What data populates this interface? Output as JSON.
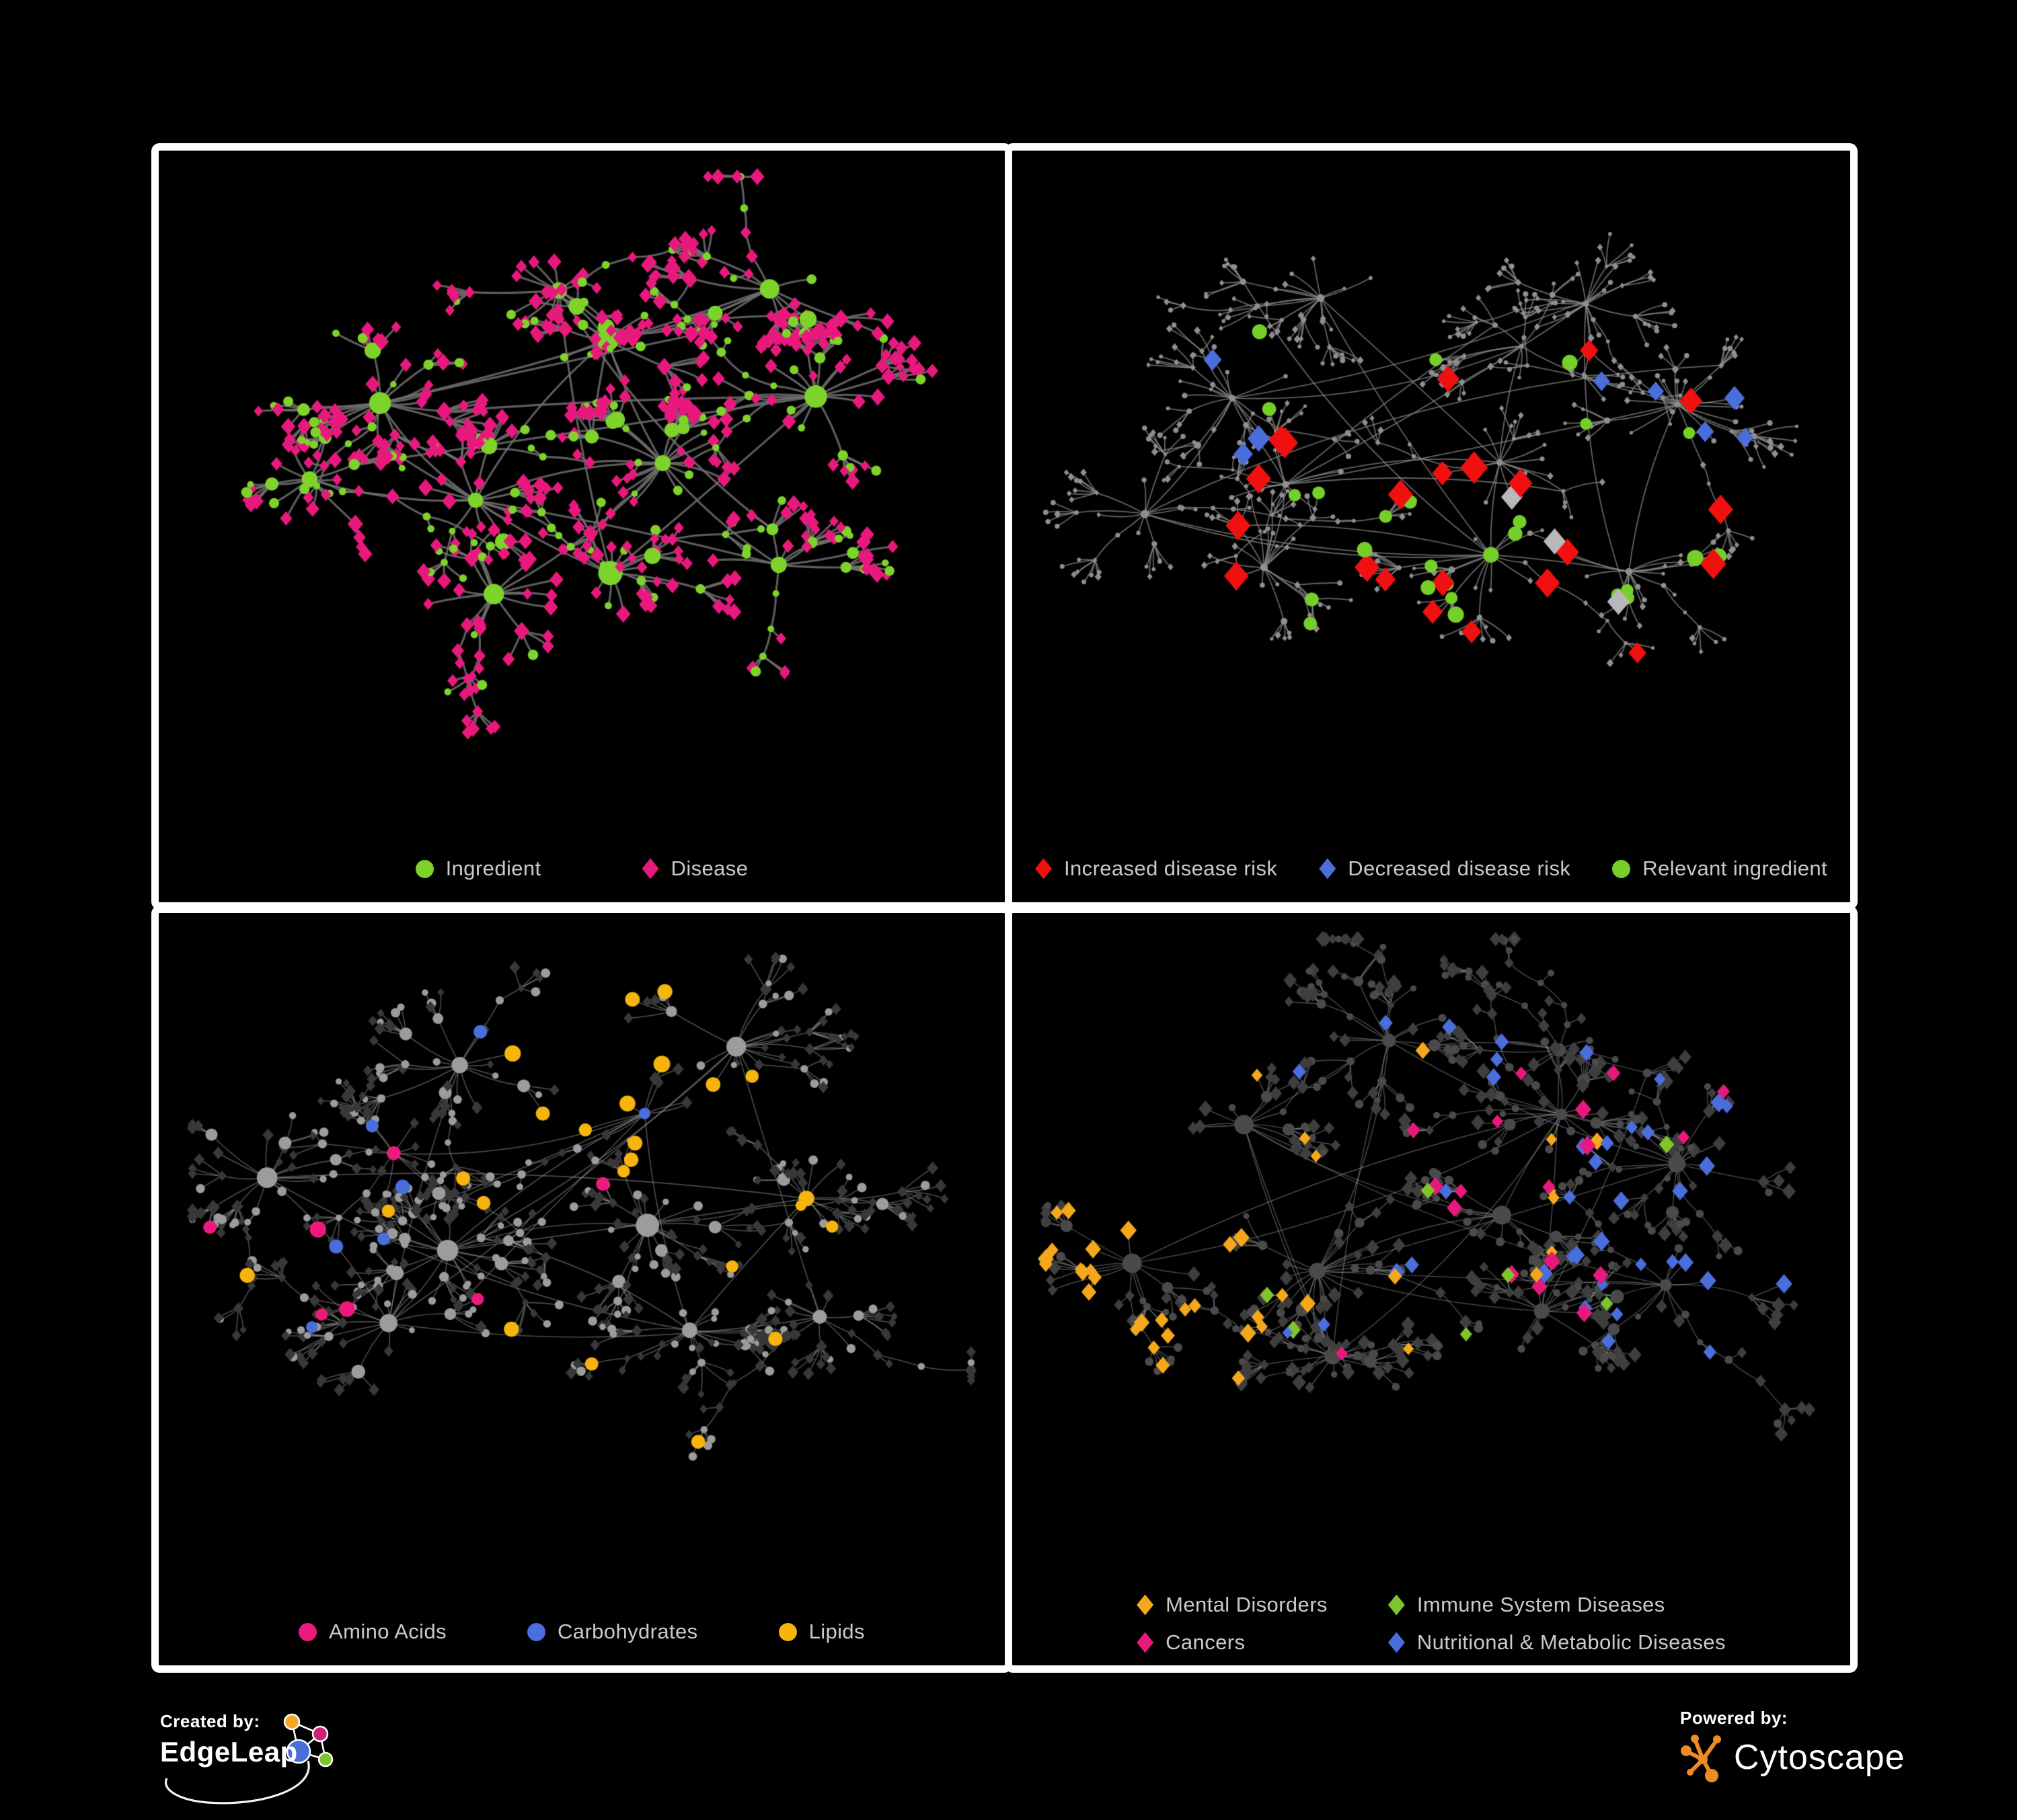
{
  "figure": {
    "background": "#000000",
    "panel_border_color": "#ffffff",
    "legend_text_color": "#c9c9c9"
  },
  "panels": [
    {
      "name": "ingredient-disease-network",
      "legend": [
        {
          "label": "Ingredient",
          "shape": "circle",
          "color": "#7ed32a"
        },
        {
          "label": "Disease",
          "shape": "diamond",
          "color": "#e8197d"
        }
      ],
      "network": {
        "seed": 13,
        "edge": {
          "color": "#6e6e6e",
          "width": 3.1,
          "alpha": 0.85
        },
        "nodes": {
          "circle_color": "#7ed32a",
          "diamond_color": "#e8197d",
          "hub_r": 15,
          "sub_r": 9.5,
          "leaf_r": 6,
          "diamond_r": 8.5,
          "p_leaf_diamond": 0.78
        },
        "highlights": []
      }
    },
    {
      "name": "disease-risk-network",
      "legend": [
        {
          "label": "Increased disease risk",
          "shape": "diamond",
          "color": "#f01010"
        },
        {
          "label": "Decreased disease risk",
          "shape": "diamond",
          "color": "#4a6edb"
        },
        {
          "label": "Relevant ingredient",
          "shape": "circle",
          "color": "#76cf28"
        }
      ],
      "network": {
        "seed": 47,
        "edge": {
          "color": "#8a8a8a",
          "width": 1.8,
          "alpha": 0.72
        },
        "nodes": {
          "circle_color": "#8f8f8f",
          "diamond_color": "#8f8f8f",
          "hub_r": 4.6,
          "sub_r": 4.0,
          "leaf_r": 3.2,
          "diamond_r": 4.0,
          "p_leaf_diamond": 0.5
        },
        "highlights": [
          {
            "shape": "diamond",
            "color": "#f01010",
            "size": 17,
            "anchor": "hub-center",
            "spread": 0.2,
            "strength": 0.5
          },
          {
            "shape": "diamond",
            "color": "#f01010",
            "size": 15,
            "anchor": "hub-right",
            "spread": 0.3,
            "strength": 0.08
          },
          {
            "shape": "diamond",
            "color": "#b9b9b9",
            "size": 14,
            "anchor": "hub-center",
            "spread": 0.16,
            "strength": 0.1
          },
          {
            "shape": "diamond",
            "color": "#4a6edb",
            "size": 14,
            "anchor": "hub-left2",
            "spread": 0.1,
            "strength": 0.32
          },
          {
            "shape": "diamond",
            "color": "#4a6edb",
            "size": 14,
            "anchor": "hub-right",
            "spread": 0.06,
            "strength": 0.4
          },
          {
            "shape": "circle",
            "color": "#76cf28",
            "size": 10,
            "anchor": "hub-center",
            "spread": 0.22,
            "strength": 0.42
          }
        ]
      }
    },
    {
      "name": "ingredient-classes-network",
      "legend": [
        {
          "label": "Amino Acids",
          "shape": "circle",
          "color": "#ed1a7e"
        },
        {
          "label": "Carbohydrates",
          "shape": "circle",
          "color": "#4a6edb"
        },
        {
          "label": "Lipids",
          "shape": "circle",
          "color": "#f6b40d"
        }
      ],
      "network": {
        "seed": 91,
        "edge": {
          "color": "#9a9a9a",
          "width": 1.6,
          "alpha": 0.5
        },
        "nodes": {
          "circle_color": "#9c9c9c",
          "diamond_color": "#383838",
          "hub_r": 13,
          "sub_r": 8,
          "leaf_r": 5.5,
          "diamond_r": 6.5,
          "p_leaf_diamond": 0.62
        },
        "highlights": [
          {
            "shape": "circle",
            "color": "#f6b40d",
            "size": 10,
            "anchor": "hub-center",
            "spread": 0.13,
            "strength": 0.75
          },
          {
            "shape": "circle",
            "color": "#f6b40d",
            "size": 9,
            "anchor": "any",
            "spread": 0.55,
            "strength": 0.06
          },
          {
            "shape": "circle",
            "color": "#4a6edb",
            "size": 9,
            "anchor": "hub-center",
            "spread": 0.1,
            "strength": 0.22
          },
          {
            "shape": "circle",
            "color": "#4a6edb",
            "size": 9,
            "anchor": "any",
            "spread": 0.5,
            "strength": 0.02
          },
          {
            "shape": "circle",
            "color": "#ed1a7e",
            "size": 10,
            "anchor": "any",
            "spread": 0.6,
            "strength": 0.05
          }
        ]
      }
    },
    {
      "name": "disease-categories-network",
      "legend": [
        {
          "label": "Mental Disorders",
          "shape": "diamond",
          "color": "#f5a81c"
        },
        {
          "label": "Immune System Diseases",
          "shape": "diamond",
          "color": "#7cc62b"
        },
        {
          "label": "Cancers",
          "shape": "diamond",
          "color": "#e8197d"
        },
        {
          "label": "Nutritional & Metabolic Diseases",
          "shape": "diamond",
          "color": "#4a6edb"
        }
      ],
      "network": {
        "seed": 75,
        "edge": {
          "color": "#a8a8a8",
          "width": 1.4,
          "alpha": 0.45
        },
        "nodes": {
          "circle_color": "#4a4a4a",
          "diamond_color": "#3e3e3e",
          "hub_r": 11,
          "sub_r": 7.5,
          "leaf_r": 5.5,
          "diamond_r": 8,
          "p_leaf_diamond": 0.72
        },
        "highlights": [
          {
            "shape": "diamond",
            "color": "#f5a81c",
            "size": 10,
            "anchor": "hub-left",
            "spread": 0.13,
            "strength": 0.85
          },
          {
            "shape": "diamond",
            "color": "#f5a81c",
            "size": 9,
            "anchor": "hub-left2",
            "spread": 0.09,
            "strength": 0.35
          },
          {
            "shape": "diamond",
            "color": "#f5a81c",
            "size": 9,
            "anchor": "any",
            "spread": 0.6,
            "strength": 0.02
          },
          {
            "shape": "diamond",
            "color": "#e8197d",
            "size": 10,
            "anchor": "hub-center",
            "spread": 0.12,
            "strength": 0.55
          },
          {
            "shape": "diamond",
            "color": "#e8197d",
            "size": 9,
            "anchor": "any",
            "spread": 0.6,
            "strength": 0.03
          },
          {
            "shape": "diamond",
            "color": "#4a6edb",
            "size": 10,
            "anchor": "hub-right",
            "spread": 0.22,
            "strength": 0.38
          },
          {
            "shape": "diamond",
            "color": "#4a6edb",
            "size": 9,
            "anchor": "any",
            "spread": 0.6,
            "strength": 0.05
          },
          {
            "shape": "diamond",
            "color": "#7cc62b",
            "size": 10,
            "anchor": "hub-center",
            "spread": 0.3,
            "strength": 0.035
          }
        ]
      }
    }
  ],
  "footer": {
    "created_by_label": "Created by:",
    "created_by_name": "EdgeLeap",
    "powered_by_label": "Powered by:",
    "powered_by_name": "Cytoscape",
    "edgeleap_logo_colors": {
      "blue": "#4a6fd8",
      "orange": "#f5a623",
      "magenta": "#cf2277",
      "green": "#7cc62b",
      "stroke": "#ffffff"
    },
    "cytoscape_logo_color": "#ee8b22"
  }
}
